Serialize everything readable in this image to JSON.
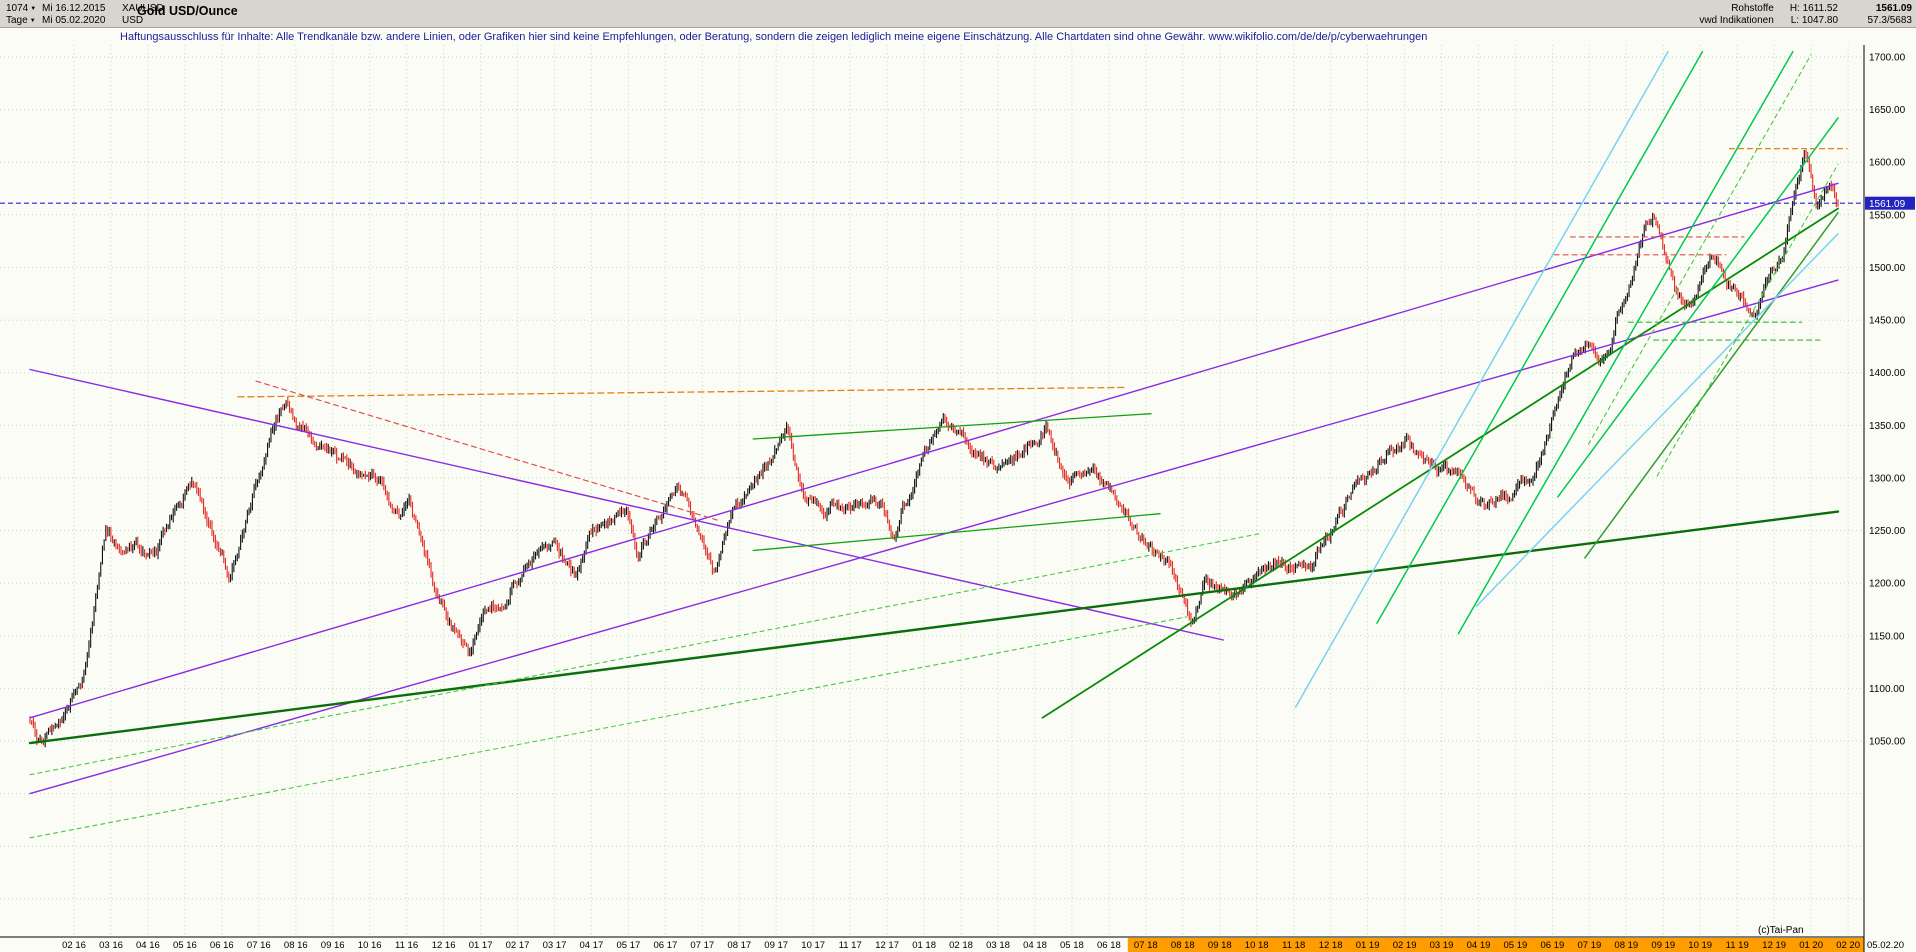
{
  "header": {
    "bars_count": "1074",
    "start_date": "Mi 16.12.2015",
    "symbol": "XAUUSD",
    "period": "Tage",
    "end_date": "Mi 05.02.2020",
    "currency": "USD",
    "title": "Gold USD/Ounce",
    "right": {
      "group1_label": "Rohstoffe",
      "high_label": "H: 1611.52",
      "last_price": "1561.09",
      "group2_label": "vwd Indikationen",
      "low_label": "L: 1047.80",
      "extra": "57.3/5683"
    }
  },
  "icons": {
    "chevron_down": "▼"
  },
  "disclaimer": "Haftungsausschluss für Inhalte: Alle Trendkanäle bzw. andere Linien, oder Grafiken hier sind keine Empfehlungen, oder Beratung, sondern die zeigen lediglich meine eigene Einschätzung. Alle Chartdaten sind ohne Gewähr.  www.wikifolio.com/de/de/p/cyberwaehrungen",
  "footer": {
    "copyright": "(c)Tai-Pan",
    "last_date": "05.02.20"
  },
  "chart_data": {
    "type": "candlestick",
    "title": "Gold USD/Ounce",
    "symbol": "XAUUSD",
    "timeframe": "Tage",
    "bars": 1074,
    "last": 1561.09,
    "high": 1611.52,
    "low": 1047.8,
    "ylim": [
      863,
      1711
    ],
    "grid": true,
    "y_ticks": [
      1700,
      1650,
      1600,
      1550,
      1500,
      1450,
      1400,
      1350,
      1300,
      1250,
      1200,
      1150,
      1100,
      1050
    ],
    "x_labels": [
      "02 16",
      "03 16",
      "04 16",
      "05 16",
      "06 16",
      "07 16",
      "08 16",
      "09 16",
      "10 16",
      "11 16",
      "12 16",
      "01 17",
      "02 17",
      "03 17",
      "04 17",
      "05 17",
      "06 17",
      "07 17",
      "08 17",
      "09 17",
      "10 17",
      "11 17",
      "12 17",
      "01 18",
      "02 18",
      "03 18",
      "04 18",
      "05 18",
      "06 18",
      "07 18",
      "08 18",
      "09 18",
      "10 18",
      "11 18",
      "12 18",
      "01 19",
      "02 19",
      "03 19",
      "04 19",
      "05 19",
      "06 19",
      "07 19",
      "08 19",
      "09 19",
      "10 19",
      "11 19",
      "12 19",
      "01 20",
      "02 20"
    ],
    "orange_band_start_label": "07 18",
    "anchors": [
      [
        0.0,
        1070
      ],
      [
        0.006,
        1047
      ],
      [
        0.012,
        1064
      ],
      [
        0.02,
        1090
      ],
      [
        0.03,
        1118
      ],
      [
        0.042,
        1246
      ],
      [
        0.05,
        1238
      ],
      [
        0.07,
        1232
      ],
      [
        0.09,
        1290
      ],
      [
        0.11,
        1213
      ],
      [
        0.13,
        1320
      ],
      [
        0.142,
        1372
      ],
      [
        0.15,
        1350
      ],
      [
        0.17,
        1310
      ],
      [
        0.19,
        1316
      ],
      [
        0.205,
        1262
      ],
      [
        0.21,
        1272
      ],
      [
        0.23,
        1173
      ],
      [
        0.243,
        1127
      ],
      [
        0.25,
        1152
      ],
      [
        0.27,
        1210
      ],
      [
        0.29,
        1248
      ],
      [
        0.302,
        1204
      ],
      [
        0.31,
        1249
      ],
      [
        0.33,
        1268
      ],
      [
        0.336,
        1220
      ],
      [
        0.35,
        1269
      ],
      [
        0.358,
        1290
      ],
      [
        0.37,
        1242
      ],
      [
        0.378,
        1210
      ],
      [
        0.39,
        1269
      ],
      [
        0.41,
        1321
      ],
      [
        0.418,
        1351
      ],
      [
        0.43,
        1280
      ],
      [
        0.45,
        1271
      ],
      [
        0.47,
        1275
      ],
      [
        0.478,
        1240
      ],
      [
        0.49,
        1303
      ],
      [
        0.505,
        1358
      ],
      [
        0.51,
        1345
      ],
      [
        0.53,
        1318
      ],
      [
        0.55,
        1325
      ],
      [
        0.562,
        1350
      ],
      [
        0.57,
        1315
      ],
      [
        0.59,
        1298
      ],
      [
        0.61,
        1253
      ],
      [
        0.63,
        1224
      ],
      [
        0.642,
        1165
      ],
      [
        0.65,
        1201
      ],
      [
        0.67,
        1192
      ],
      [
        0.69,
        1215
      ],
      [
        0.71,
        1222
      ],
      [
        0.73,
        1282
      ],
      [
        0.75,
        1321
      ],
      [
        0.762,
        1340
      ],
      [
        0.77,
        1313
      ],
      [
        0.79,
        1292
      ],
      [
        0.805,
        1270
      ],
      [
        0.81,
        1283
      ],
      [
        0.83,
        1305
      ],
      [
        0.85,
        1409
      ],
      [
        0.862,
        1440
      ],
      [
        0.87,
        1414
      ],
      [
        0.89,
        1520
      ],
      [
        0.898,
        1552
      ],
      [
        0.91,
        1472
      ],
      [
        0.918,
        1470
      ],
      [
        0.93,
        1512
      ],
      [
        0.95,
        1464
      ],
      [
        0.955,
        1455
      ],
      [
        0.97,
        1517
      ],
      [
        0.978,
        1588
      ],
      [
        0.982,
        1604
      ],
      [
        0.988,
        1552
      ],
      [
        0.995,
        1585
      ],
      [
        1.0,
        1561
      ]
    ],
    "trend_lines": [
      {
        "a": [
          0.0,
          1072
        ],
        "b": [
          1.0,
          1580
        ],
        "color": "#8a2be2",
        "w": 1.4
      },
      {
        "a": [
          0.0,
          1000
        ],
        "b": [
          1.0,
          1488
        ],
        "color": "#8a2be2",
        "w": 1.4
      },
      {
        "a": [
          0.0,
          1403
        ],
        "b": [
          0.66,
          1146
        ],
        "color": "#8a2be2",
        "w": 1.4
      },
      {
        "a": [
          0.0,
          1048
        ],
        "b": [
          1.0,
          1268
        ],
        "color": "#0a6e0a",
        "w": 2.4
      },
      {
        "a": [
          0.56,
          1072
        ],
        "b": [
          1.0,
          1556
        ],
        "color": "#0a8a0a",
        "w": 1.8
      },
      {
        "a": [
          0.4,
          1231
        ],
        "b": [
          0.625,
          1266
        ],
        "color": "#12a012",
        "w": 1.3
      },
      {
        "a": [
          0.4,
          1337
        ],
        "b": [
          0.62,
          1361
        ],
        "color": "#12a012",
        "w": 1.3
      },
      {
        "a": [
          0.745,
          1162
        ],
        "b": [
          0.925,
          1705
        ],
        "color": "#00c853",
        "w": 1.5
      },
      {
        "a": [
          0.79,
          1152
        ],
        "b": [
          0.975,
          1705
        ],
        "color": "#00c853",
        "w": 1.5
      },
      {
        "a": [
          0.845,
          1282
        ],
        "b": [
          1.0,
          1642
        ],
        "color": "#00c853",
        "w": 1.5
      },
      {
        "a": [
          0.86,
          1224
        ],
        "b": [
          1.0,
          1552
        ],
        "color": "#2e9e2e",
        "w": 1.5
      },
      {
        "a": [
          0.7,
          1082
        ],
        "b": [
          0.906,
          1705
        ],
        "color": "#79d2f2",
        "w": 1.5
      },
      {
        "a": [
          0.8,
          1178
        ],
        "b": [
          1.0,
          1532
        ],
        "color": "#79d2f2",
        "w": 1.5
      },
      {
        "a": [
          0.115,
          1377
        ],
        "b": [
          0.607,
          1386
        ],
        "color": "#e08214",
        "w": 1.3,
        "dash": "6,4"
      },
      {
        "a": [
          0.125,
          1392
        ],
        "b": [
          0.38,
          1260
        ],
        "color": "#e05050",
        "w": 1.2,
        "dash": "5,4"
      },
      {
        "a": [
          0.0,
          1018
        ],
        "b": [
          0.68,
          1247
        ],
        "color": "#46c846",
        "w": 1.1,
        "dash": "4,4"
      },
      {
        "a": [
          0.0,
          958
        ],
        "b": [
          0.64,
          1168
        ],
        "color": "#46c846",
        "w": 1.1,
        "dash": "4,4"
      },
      {
        "a": [
          0.862,
          1332
        ],
        "b": [
          0.985,
          1702
        ],
        "color": "#46c846",
        "w": 1.1,
        "dash": "4,4"
      },
      {
        "a": [
          0.9,
          1302
        ],
        "b": [
          1.0,
          1598
        ],
        "color": "#46c846",
        "w": 1.1,
        "dash": "4,4"
      },
      {
        "a": [
          0.852,
          1529
        ],
        "b": [
          0.948,
          1529
        ],
        "color": "#e05050",
        "w": 1.1,
        "dash": "5,4"
      },
      {
        "a": [
          0.843,
          1512
        ],
        "b": [
          0.938,
          1512
        ],
        "color": "#e05050",
        "w": 1.1,
        "dash": "5,4"
      },
      {
        "a": [
          0.884,
          1448
        ],
        "b": [
          0.98,
          1448
        ],
        "color": "#35b435",
        "w": 1.1,
        "dash": "5,4"
      },
      {
        "a": [
          0.898,
          1431
        ],
        "b": [
          0.99,
          1431
        ],
        "color": "#35b435",
        "w": 1.1,
        "dash": "5,4"
      },
      {
        "a": [
          0.94,
          1613
        ],
        "b": [
          1.005,
          1613
        ],
        "color": "#e08214",
        "w": 1.2,
        "dash": "5,4"
      }
    ],
    "colors": {
      "up": "#111111",
      "down": "#e02a22",
      "grid": "#b6dfb6",
      "band": "#ff9d00",
      "last_line": "#2222cc",
      "badge_bg": "#2323bf",
      "badge_text": "#ffffff",
      "background": "#fcfcf6"
    }
  }
}
